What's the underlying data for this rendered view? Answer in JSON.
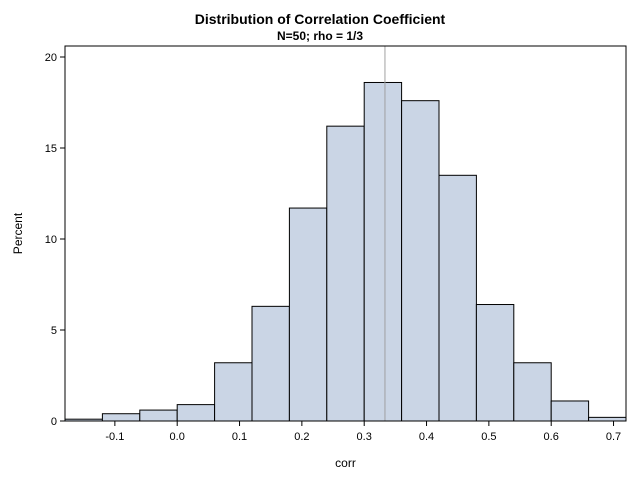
{
  "chart_data": {
    "type": "bar",
    "subtype": "histogram",
    "title": "Distribution of Correlation Coefficient",
    "subtitle": "N=50; rho = 1/3",
    "xlabel": "corr",
    "ylabel": "Percent",
    "bin_width": 0.06,
    "bins": [
      {
        "x": -0.15,
        "value": 0.1
      },
      {
        "x": -0.09,
        "value": 0.4
      },
      {
        "x": -0.03,
        "value": 0.6
      },
      {
        "x": 0.03,
        "value": 0.9
      },
      {
        "x": 0.09,
        "value": 3.2
      },
      {
        "x": 0.15,
        "value": 6.3
      },
      {
        "x": 0.21,
        "value": 11.7
      },
      {
        "x": 0.27,
        "value": 16.2
      },
      {
        "x": 0.33,
        "value": 18.6
      },
      {
        "x": 0.39,
        "value": 17.6
      },
      {
        "x": 0.45,
        "value": 13.5
      },
      {
        "x": 0.51,
        "value": 6.4
      },
      {
        "x": 0.57,
        "value": 3.2
      },
      {
        "x": 0.63,
        "value": 1.1
      },
      {
        "x": 0.69,
        "value": 0.2
      }
    ],
    "reference_line_x": 0.3333,
    "xlim": [
      -0.18,
      0.72
    ],
    "ylim": [
      0,
      20
    ],
    "xticks": [
      {
        "value": -0.1,
        "label": "-0.1"
      },
      {
        "value": 0.0,
        "label": "0.0"
      },
      {
        "value": 0.1,
        "label": "0.1"
      },
      {
        "value": 0.2,
        "label": "0.2"
      },
      {
        "value": 0.3,
        "label": "0.3"
      },
      {
        "value": 0.4,
        "label": "0.4"
      },
      {
        "value": 0.5,
        "label": "0.5"
      },
      {
        "value": 0.6,
        "label": "0.6"
      },
      {
        "value": 0.7,
        "label": "0.7"
      }
    ],
    "yticks": [
      {
        "value": 0,
        "label": "0"
      },
      {
        "value": 5,
        "label": "5"
      },
      {
        "value": 10,
        "label": "10"
      },
      {
        "value": 15,
        "label": "15"
      },
      {
        "value": 20,
        "label": "20"
      }
    ],
    "grid": false,
    "legend": "none",
    "colors": {
      "bar_fill": "#cad5e5",
      "bar_stroke": "#000000",
      "reference_line": "#a0a0a0",
      "axis": "#000000"
    }
  }
}
